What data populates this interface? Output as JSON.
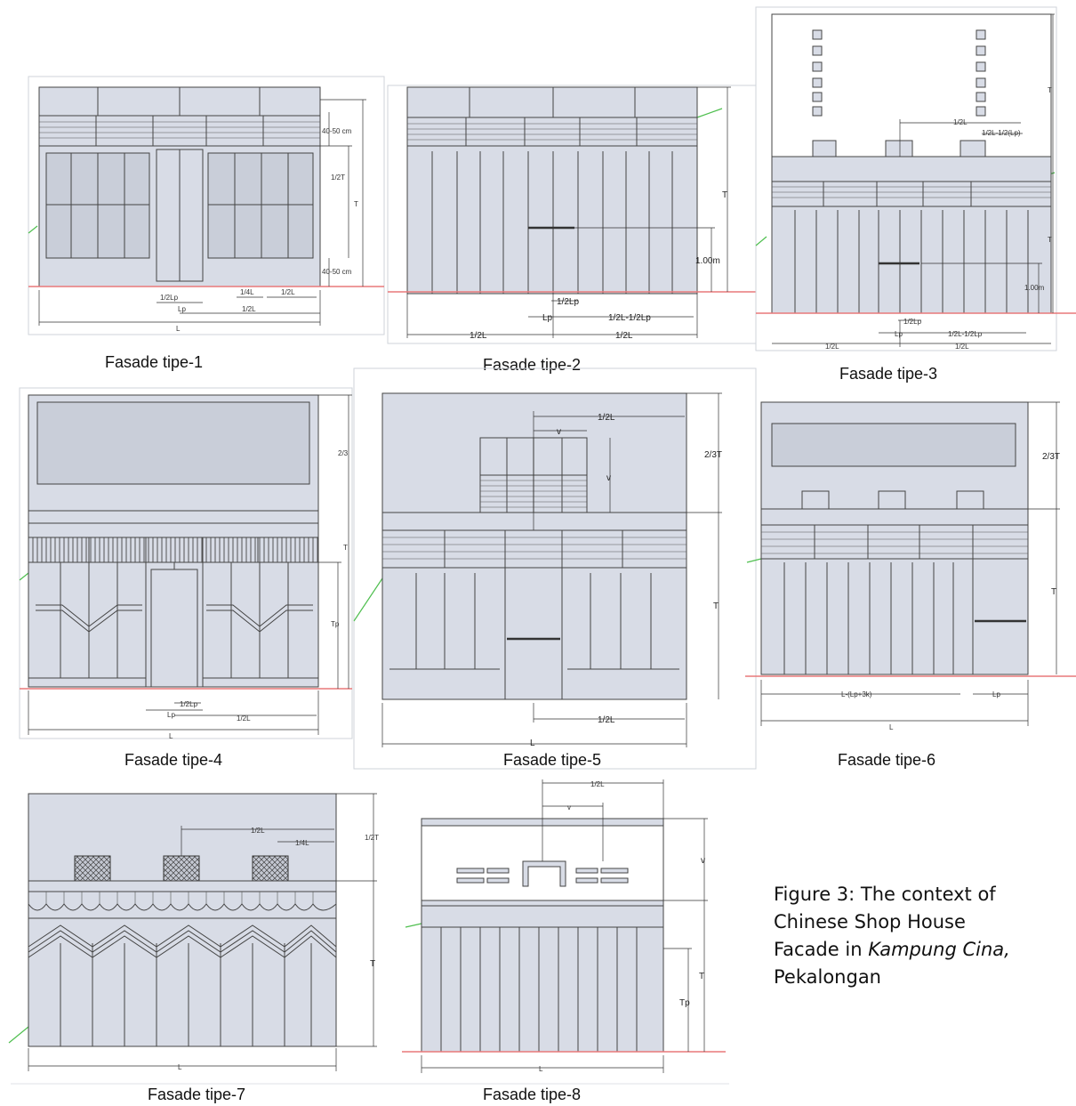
{
  "facades": [
    {
      "label": "Fasade tipe-1",
      "dims": [
        "L",
        "1/2L",
        "1/2Lp",
        "Lp",
        "1/4L",
        "1/2L",
        "40-50 cm",
        "40-50 cm",
        "1/2T",
        "T"
      ]
    },
    {
      "label": "Fasade tipe-2",
      "dims": [
        "1/2L",
        "1/2L",
        "Lp",
        "1/2Lp",
        "1/2L-1/2Lp",
        "T",
        "1.00m"
      ]
    },
    {
      "label": "Fasade tipe-3",
      "dims": [
        "1/2L",
        "1/2L",
        "Lp",
        "1/2Lp",
        "1/2L-1/2Lp",
        "1/2L",
        "1/2L-1/2(Lp)",
        "T",
        "T",
        "1.00m"
      ]
    },
    {
      "label": "Fasade tipe-4",
      "dims": [
        "L",
        "1/2L",
        "Lp",
        "1/2Lp",
        "2/3",
        "T",
        "Tp"
      ]
    },
    {
      "label": "Fasade tipe-5",
      "dims": [
        "L",
        "1/2L",
        "1/2L",
        "v",
        "v",
        "2/3T",
        "T"
      ]
    },
    {
      "label": "Fasade tipe-6",
      "dims": [
        "L",
        "L-(Lp+3k)",
        "Lp",
        "2/3T",
        "T"
      ]
    },
    {
      "label": "Fasade tipe-7",
      "dims": [
        "L",
        "1/2L",
        "1/4L",
        "1/2T",
        "T"
      ]
    },
    {
      "label": "Fasade tipe-8",
      "dims": [
        "L",
        "1/2L",
        "v",
        "v",
        "T",
        "Tp"
      ]
    }
  ],
  "caption": {
    "line1": "Figure 3: The context of",
    "line2": "Chinese Shop House",
    "line3_prefix": "Facade in ",
    "line3_italic": "Kampung Cina,",
    "line4": "Pekalongan"
  }
}
